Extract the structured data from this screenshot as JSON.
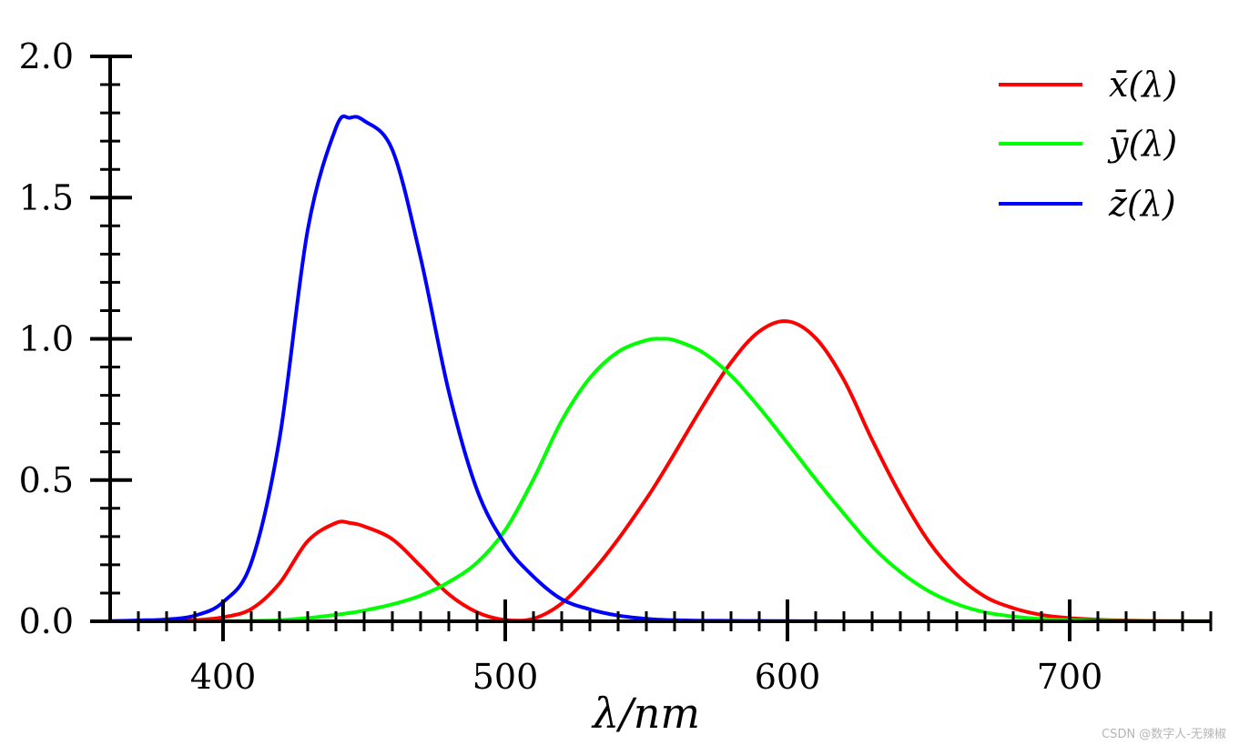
{
  "chart_data": {
    "type": "line",
    "title": "",
    "xlabel": "λ/nm",
    "ylabel": "",
    "xlim": [
      360,
      750
    ],
    "ylim": [
      0,
      2.0
    ],
    "grid": false,
    "legend_position": "top-right",
    "x_ticks": [
      400,
      500,
      600,
      700
    ],
    "x_tick_labels": [
      "400",
      "500",
      "600",
      "700"
    ],
    "y_ticks": [
      0,
      0.5,
      1.0,
      1.5,
      2.0
    ],
    "y_tick_labels": [
      "0.0",
      "0.5",
      "1.0",
      "1.5",
      "2.0"
    ],
    "x": [
      360,
      370,
      380,
      390,
      400,
      410,
      420,
      430,
      440,
      445,
      450,
      460,
      470,
      480,
      490,
      500,
      510,
      520,
      530,
      540,
      550,
      555,
      560,
      570,
      580,
      590,
      600,
      610,
      620,
      630,
      640,
      650,
      660,
      670,
      680,
      690,
      700,
      710,
      720,
      730,
      740,
      750
    ],
    "series": [
      {
        "name": "x̄(λ)",
        "color": "#ff0000",
        "values": [
          0.0001,
          0.0007,
          0.0014,
          0.0042,
          0.0143,
          0.0435,
          0.1344,
          0.2839,
          0.3483,
          0.3481,
          0.3362,
          0.2908,
          0.1954,
          0.0956,
          0.032,
          0.0049,
          0.0093,
          0.0633,
          0.1655,
          0.2904,
          0.4334,
          0.512,
          0.5945,
          0.7621,
          0.9163,
          1.0263,
          1.0622,
          1.0026,
          0.8544,
          0.6424,
          0.4479,
          0.2835,
          0.1649,
          0.0874,
          0.0468,
          0.0227,
          0.0114,
          0.0058,
          0.0029,
          0.0014,
          0.0007,
          0.0003
        ]
      },
      {
        "name": "ȳ(λ)",
        "color": "#00ff00",
        "values": [
          0.0,
          0.0,
          0.0,
          0.0001,
          0.0004,
          0.0012,
          0.004,
          0.0116,
          0.023,
          0.0298,
          0.038,
          0.06,
          0.091,
          0.139,
          0.208,
          0.323,
          0.503,
          0.71,
          0.862,
          0.954,
          0.995,
          1.0,
          0.995,
          0.952,
          0.87,
          0.757,
          0.631,
          0.503,
          0.381,
          0.265,
          0.175,
          0.107,
          0.061,
          0.032,
          0.017,
          0.0082,
          0.0041,
          0.0021,
          0.001,
          0.0005,
          0.0003,
          0.0001
        ]
      },
      {
        "name": "z̄(λ)",
        "color": "#0000ff",
        "values": [
          0.0006,
          0.0032,
          0.0065,
          0.0201,
          0.0679,
          0.2074,
          0.6456,
          1.3856,
          1.7471,
          1.7826,
          1.7721,
          1.6692,
          1.2876,
          0.813,
          0.4652,
          0.272,
          0.1582,
          0.0782,
          0.0422,
          0.0203,
          0.0087,
          0.0057,
          0.0039,
          0.0021,
          0.0017,
          0.0011,
          0.0008,
          0.0003,
          0.0002,
          0.0,
          0.0,
          0.0,
          0.0,
          0.0,
          0.0,
          0.0,
          0.0,
          0.0,
          0.0,
          0.0,
          0.0,
          0.0
        ]
      }
    ]
  },
  "watermark": "CSDN @数字人-无辣椒"
}
